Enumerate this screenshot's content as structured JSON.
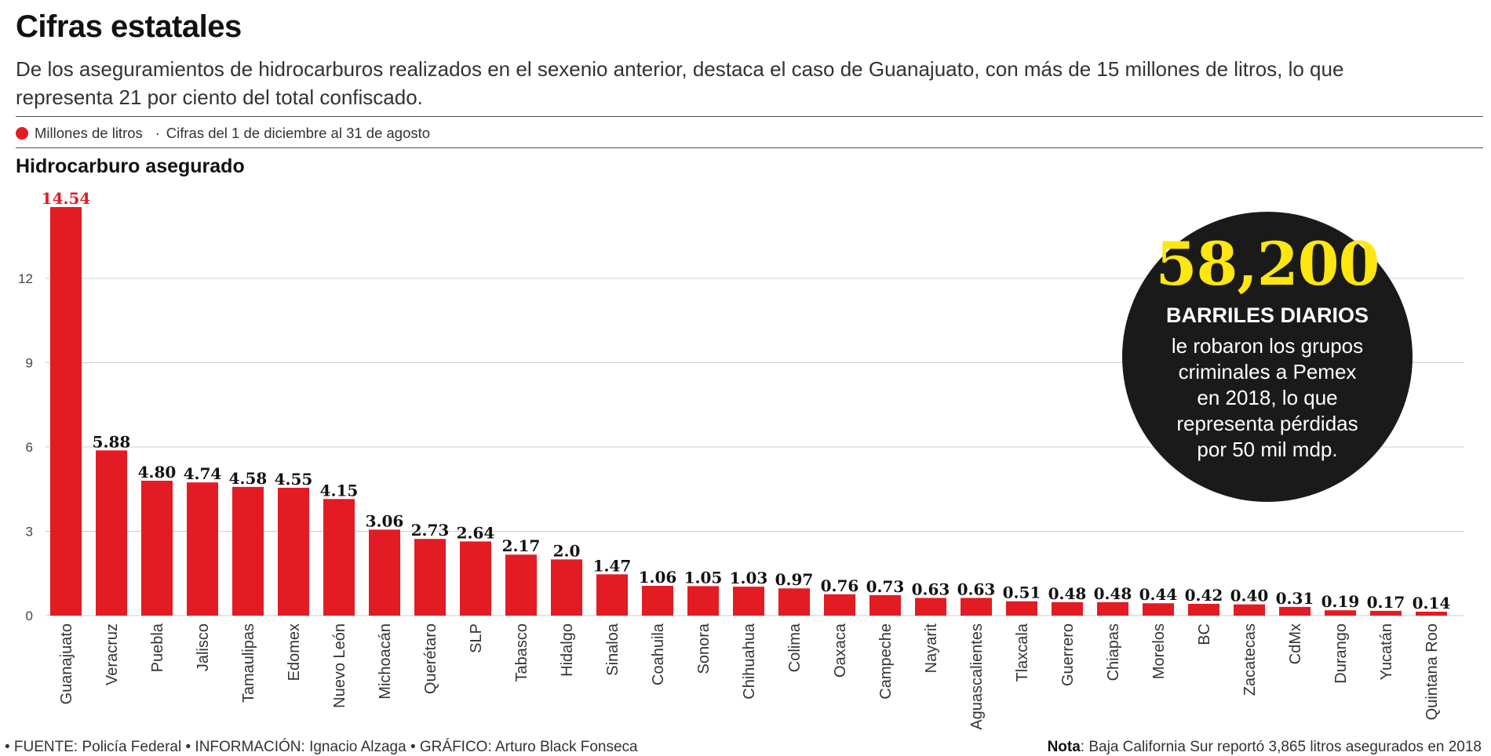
{
  "header": {
    "title": "Cifras estatales",
    "subtitle": "De los aseguramientos de hidrocarburos realizados en el sexenio anterior, destaca el caso de Guanajuato, con más de 15 millones de litros, lo que representa 21 por ciento del total confiscado."
  },
  "legend": {
    "series_label": "Millones de litros",
    "note": "Cifras del 1 de diciembre al 31 de agosto"
  },
  "chart_title": "Hidrocarburo asegurado",
  "colors": {
    "bar": "#e31b23",
    "highlight_label": "#e31b23",
    "gridline": "#cccccc",
    "callout_bg": "#1a1a1a",
    "callout_number": "#ffe60f"
  },
  "callout": {
    "number": "58,200",
    "headline": "BARRILES DIARIOS",
    "body": "le robaron los grupos criminales a Pemex en 2018, lo que representa pérdidas por 50 mil mdp."
  },
  "footer": {
    "credits": "• FUENTE: Policía Federal • INFORMACIÓN: Ignacio Alzaga • GRÁFICO: Arturo Black Fonseca",
    "note_label": "Nota",
    "note_text": ": Baja California Sur reportó 3,865 litros asegurados en 2018"
  },
  "chart_data": {
    "type": "bar",
    "title": "Hidrocarburo asegurado",
    "xlabel": "",
    "ylabel": "",
    "ylim": [
      0,
      14.54
    ],
    "yticks": [
      0,
      3,
      6,
      9,
      12
    ],
    "grid": true,
    "categories": [
      "Guanajuato",
      "Veracruz",
      "Puebla",
      "Jalisco",
      "Tamaulipas",
      "Edomex",
      "Nuevo León",
      "Michoacán",
      "Querétaro",
      "SLP",
      "Tabasco",
      "Hidalgo",
      "Sinaloa",
      "Coahuila",
      "Sonora",
      "Chihuahua",
      "Colima",
      "Oaxaca",
      "Campeche",
      "Nayarit",
      "Aguascalientes",
      "Tlaxcala",
      "Guerrero",
      "Chiapas",
      "Morelos",
      "BC",
      "Zacatecas",
      "CdMx",
      "Durango",
      "Yucatán",
      "Quintana Roo"
    ],
    "values": [
      14.54,
      5.88,
      4.8,
      4.74,
      4.58,
      4.55,
      4.15,
      3.06,
      2.73,
      2.64,
      2.17,
      2.0,
      1.47,
      1.06,
      1.05,
      1.03,
      0.97,
      0.76,
      0.73,
      0.63,
      0.63,
      0.51,
      0.48,
      0.48,
      0.44,
      0.42,
      0.4,
      0.31,
      0.19,
      0.17,
      0.14
    ],
    "value_labels": [
      "14.54",
      "5.88",
      "4.80",
      "4.74",
      "4.58",
      "4.55",
      "4.15",
      "3.06",
      "2.73",
      "2.64",
      "2.17",
      "2.0",
      "1.47",
      "1.06",
      "1.05",
      "1.03",
      "0.97",
      "0.76",
      "0.73",
      "0.63",
      "0.63",
      "0.51",
      "0.48",
      "0.48",
      "0.44",
      "0.42",
      "0.40",
      "0.31",
      "0.19",
      "0.17",
      "0.14"
    ]
  }
}
